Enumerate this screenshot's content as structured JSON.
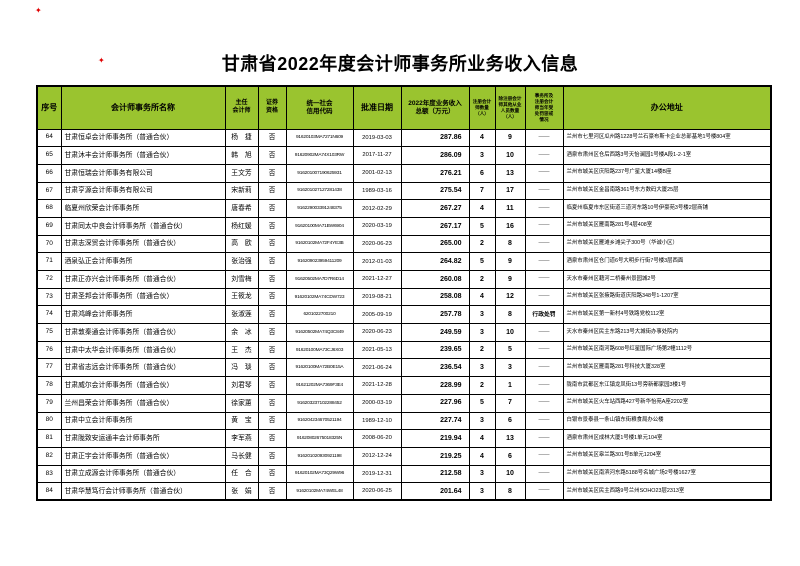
{
  "colors": {
    "header_bg": "#9ac42f",
    "mark_red": "#e00000",
    "border": "#000000"
  },
  "marks": {
    "glyph1": "✦",
    "glyph2": "✦"
  },
  "doc": {
    "title": "甘肃省2022年度会计师事务所业务收入信息"
  },
  "table": {
    "headers": [
      "序号",
      "会计师事务所名称",
      "主任\n会计师",
      "证券\n资格",
      "统一社会\n信用代码",
      "批准日期",
      "2022年度业务收入\n总额（万元）",
      "注册会计\n师数量\n（人）",
      "除注册会计\n师其他从业\n人员数量\n（人）",
      "事务所及\n注册会计\n师当年受\n处罚惩戒\n情况",
      "办公地址"
    ],
    "rows": [
      {
        "no": "64",
        "name": "甘肃恒卓会计师事务所（普通合伙）",
        "accountant": "杨　捷",
        "securities": "否",
        "code": "91620103MA7271N609",
        "date": "2019-03-03",
        "revenue": "287.86",
        "cpa": "4",
        "other": "9",
        "penalty": "——",
        "address": "兰州市七里河区瓜州路1228号兰石豪布斯卡企业总部基地1号楼804室"
      },
      {
        "no": "65",
        "name": "甘肃沐丰会计师事务所（普通合伙）",
        "accountant": "韩　旭",
        "securities": "否",
        "code": "91620902MA74X103RW",
        "date": "2017-11-27",
        "revenue": "286.09",
        "cpa": "3",
        "other": "10",
        "penalty": "——",
        "address": "酒泉市肃州区仓后西路3号天怡澜园1号楼A段1-2-1室"
      },
      {
        "no": "66",
        "name": "甘肃恒瑞会计师事务有限公司",
        "accountant": "王文芳",
        "securities": "否",
        "code": "916201007190625931",
        "date": "2001-02-13",
        "revenue": "276.21",
        "cpa": "6",
        "other": "13",
        "penalty": "——",
        "address": "兰州市城关区庆阳路237号广星大厦14楼B座"
      },
      {
        "no": "67",
        "name": "甘肃亨源会计师事务有限公司",
        "accountant": "宋新莉",
        "securities": "否",
        "code": "916201027127281438",
        "date": "1989-03-16",
        "revenue": "275.54",
        "cpa": "7",
        "other": "17",
        "penalty": "——",
        "address": "兰州市城关区金昌南路361号东方数码大厦25层"
      },
      {
        "no": "68",
        "name": "临夏州欣荣会计师事务所",
        "accountant": "唐春希",
        "securities": "否",
        "code": "916229003391248375",
        "date": "2012-02-29",
        "revenue": "267.27",
        "cpa": "4",
        "other": "11",
        "penalty": "——",
        "address": "临夏州临夏市东区街道三道河东路10号伊豪苑3号楼2层商铺"
      },
      {
        "no": "69",
        "name": "甘肃同太中良会计师事务所（普通合伙）",
        "accountant": "杨红媛",
        "securities": "否",
        "code": "91620100MA71BW6904",
        "date": "2020-03-19",
        "revenue": "267.17",
        "cpa": "5",
        "other": "16",
        "penalty": "——",
        "address": "兰州市城关区雁南路281号4层408室"
      },
      {
        "no": "70",
        "name": "甘肃志深贸会计师事务所（普通合伙）",
        "accountant": "高　欧",
        "securities": "否",
        "code": "91620102MA72F4YE3B",
        "date": "2020-06-23",
        "revenue": "265.00",
        "cpa": "2",
        "other": "8",
        "penalty": "——",
        "address": "兰州市城关区雁滩乡滩尖子300号（华诚小区）"
      },
      {
        "no": "71",
        "name": "酒泉弘正会计师事务所",
        "accountant": "张治强",
        "securities": "否",
        "code": "916209023959411209",
        "date": "2012-01-03",
        "revenue": "264.82",
        "cpa": "5",
        "other": "9",
        "penalty": "——",
        "address": "酒泉市肃州区仓门道6号大明步行街7号楼3层西面"
      },
      {
        "no": "72",
        "name": "甘肃正亦兴会计师事务所（普通合伙）",
        "accountant": "刘雪梅",
        "securities": "否",
        "code": "91620502MA7D7R6D14",
        "date": "2021-12-27",
        "revenue": "260.08",
        "cpa": "2",
        "other": "9",
        "penalty": "——",
        "address": "天水市秦州区藉河二桥秦州景园城2号"
      },
      {
        "no": "73",
        "name": "甘肃圣邦会计师事务所（普通合伙）",
        "accountant": "王筱龙",
        "securities": "否",
        "code": "91620102MA74CDW723",
        "date": "2019-08-21",
        "revenue": "258.08",
        "cpa": "4",
        "other": "12",
        "penalty": "——",
        "address": "兰州市城关区张掖路街道庆阳路348号1-1207室"
      },
      {
        "no": "74",
        "name": "甘肃鸿峰会计师事务所",
        "accountant": "张淑莲",
        "securities": "否",
        "code": "6201022700210",
        "date": "2005-09-19",
        "revenue": "257.78",
        "cpa": "3",
        "other": "8",
        "penalty": "行政处罚",
        "address": "兰州市城关区第一新村4号铁路党校112室"
      },
      {
        "no": "75",
        "name": "甘肃敦秦通会计师事务所（普通合伙）",
        "accountant": "余　冰",
        "securities": "否",
        "code": "91620502MA74Q3C849",
        "date": "2020-06-23",
        "revenue": "249.59",
        "cpa": "3",
        "other": "10",
        "penalty": "——",
        "address": "天水市秦州区民主东路213号大城街办事处院内"
      },
      {
        "no": "76",
        "name": "甘肃中太华会计师事务所（普通合伙）",
        "accountant": "王　杰",
        "securities": "否",
        "code": "91620100MA73CJ6X03",
        "date": "2021-05-13",
        "revenue": "239.65",
        "cpa": "2",
        "other": "5",
        "penalty": "——",
        "address": "兰州市城关区南河路608号红星国际广场第2幢1112号"
      },
      {
        "no": "77",
        "name": "甘肃省志远会计师事务所（普通合伙）",
        "accountant": "冯　琰",
        "securities": "否",
        "code": "91620100MA72B0E15A",
        "date": "2021-06-24",
        "revenue": "236.54",
        "cpa": "3",
        "other": "3",
        "penalty": "——",
        "address": "兰州市城关区雁南路281号科技大厦328室"
      },
      {
        "no": "78",
        "name": "甘肃威尔会计师事务所（普通合伙）",
        "accountant": "刘君琴",
        "securities": "否",
        "code": "91621202MA7369F3E4",
        "date": "2021-12-28",
        "revenue": "228.99",
        "cpa": "2",
        "other": "1",
        "penalty": "——",
        "address": "陇南市武都区东江镇龙凤街13号旁新都家园3楼1号"
      },
      {
        "no": "79",
        "name": "兰州昌荣会计师事务所（普通合伙）",
        "accountant": "徐家蕙",
        "securities": "否",
        "code": "916203237102288452",
        "date": "2000-03-19",
        "revenue": "227.96",
        "cpa": "5",
        "other": "7",
        "penalty": "——",
        "address": "兰州市城关区火车站西路427号新华怡苑A座2202室"
      },
      {
        "no": "80",
        "name": "甘肃中立会计师事务所",
        "accountant": "黄　宝",
        "securities": "否",
        "code": "916204234670521194",
        "date": "1989-12-10",
        "revenue": "227.74",
        "cpa": "3",
        "other": "6",
        "penalty": "——",
        "address": "白银市景泰县一条山镇东街粮食局办公楼"
      },
      {
        "no": "81",
        "name": "甘肃陇致安运通丰会计师事务所",
        "accountant": "李军燕",
        "securities": "否",
        "code": "91620802675018325N",
        "date": "2008-06-20",
        "revenue": "219.94",
        "cpa": "4",
        "other": "13",
        "penalty": "——",
        "address": "酒泉市肃州区成林大厦1号楼1单元104室"
      },
      {
        "no": "82",
        "name": "甘肃正宇会计师事务所（普通合伙）",
        "accountant": "马长健",
        "securities": "否",
        "code": "916201020930921198",
        "date": "2012-12-24",
        "revenue": "219.25",
        "cpa": "4",
        "other": "6",
        "penalty": "——",
        "address": "兰州市城关区皋兰路301号B单元1204室"
      },
      {
        "no": "83",
        "name": "甘肃立成源会计师事务所（普通合伙）",
        "accountant": "任　合",
        "securities": "否",
        "code": "91620102MA73Q29W96",
        "date": "2019-12-31",
        "revenue": "212.58",
        "cpa": "3",
        "other": "10",
        "penalty": "——",
        "address": "兰州市城关区南滨河东路5188号名城广场2号楼1627室"
      },
      {
        "no": "84",
        "name": "甘肃华慧笃行会计师事务所（普通合伙）",
        "accountant": "张　娟",
        "securities": "否",
        "code": "91620102MA74WEL48",
        "date": "2020-06-25",
        "revenue": "201.64",
        "cpa": "3",
        "other": "8",
        "penalty": "——",
        "address": "兰州市城关区民主西路9号兰州SOHO23层2313室"
      }
    ]
  }
}
